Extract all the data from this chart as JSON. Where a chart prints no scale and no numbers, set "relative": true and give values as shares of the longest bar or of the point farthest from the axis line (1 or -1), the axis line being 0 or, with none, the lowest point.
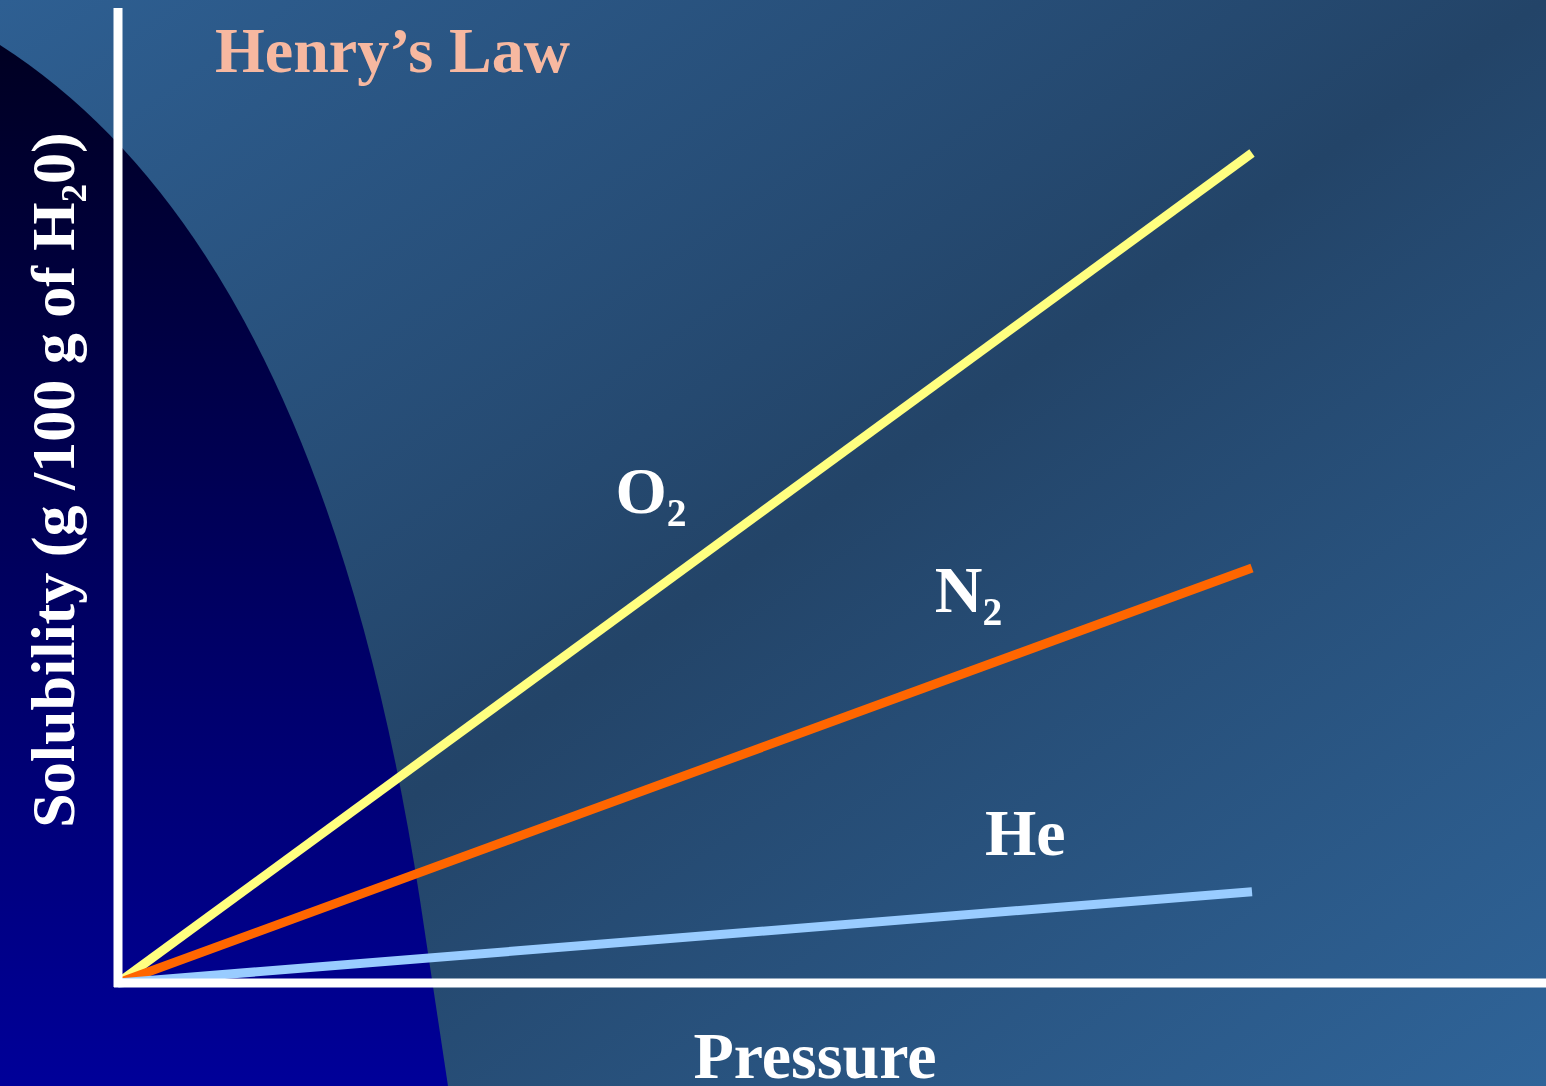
{
  "chart_data": {
    "type": "line",
    "title": "Henry’s Law",
    "xlabel": "Pressure",
    "ylabel": "Solubility (g /100 g of H₂0)",
    "relative": true,
    "categories": [
      null,
      null
    ],
    "legend": false,
    "grid": false,
    "marker": "none",
    "line_style": "solid",
    "series": [
      {
        "name": "O₂",
        "color": "#ffff80",
        "values": [
          0,
          1
        ]
      },
      {
        "name": "N₂",
        "color": "#ff6600",
        "values": [
          0,
          0.5
        ]
      },
      {
        "name": "He",
        "color": "#99ccff",
        "values": [
          0,
          0.11
        ]
      }
    ]
  }
}
